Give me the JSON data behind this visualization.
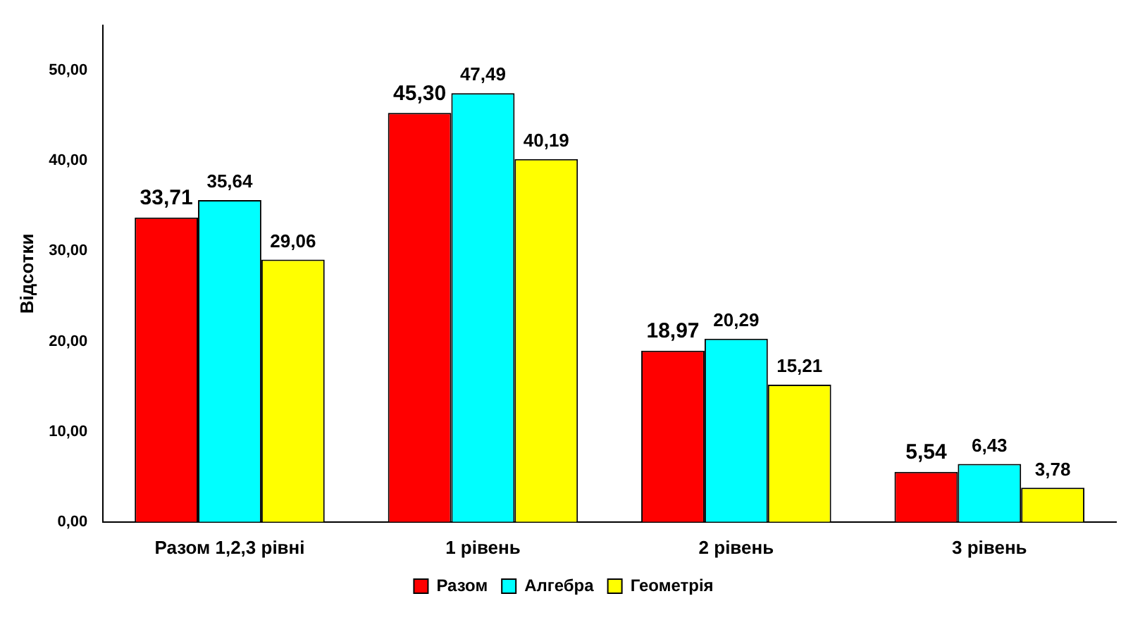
{
  "chart_data": {
    "type": "bar",
    "ylabel": "Відсотки",
    "categories": [
      "Разом 1,2,3 рівні",
      "1 рівень",
      "2 рівень",
      "3 рівень"
    ],
    "series": [
      {
        "name": "Разом",
        "color": "#ff0000",
        "values": [
          33.71,
          45.3,
          18.97,
          5.54
        ],
        "value_labels": [
          "33,71",
          "45,30",
          "18,97",
          "5,54"
        ]
      },
      {
        "name": "Алгебра",
        "color": "#00ffff",
        "values": [
          35.64,
          47.49,
          20.29,
          6.43
        ],
        "value_labels": [
          "35,64",
          "47,49",
          "20,29",
          "6,43"
        ]
      },
      {
        "name": "Геометрія",
        "color": "#ffff00",
        "values": [
          29.06,
          40.19,
          15.21,
          3.78
        ],
        "value_labels": [
          "29,06",
          "40,19",
          "15,21",
          "3,78"
        ]
      }
    ],
    "ylim": [
      0,
      55
    ],
    "yticks": [
      {
        "value": 0,
        "label": "0,00"
      },
      {
        "value": 10,
        "label": "10,00"
      },
      {
        "value": 20,
        "label": "20,00"
      },
      {
        "value": 30,
        "label": "30,00"
      },
      {
        "value": 40,
        "label": "40,00"
      },
      {
        "value": 50,
        "label": "50,00"
      }
    ],
    "grid": false,
    "legend": "bottom"
  }
}
